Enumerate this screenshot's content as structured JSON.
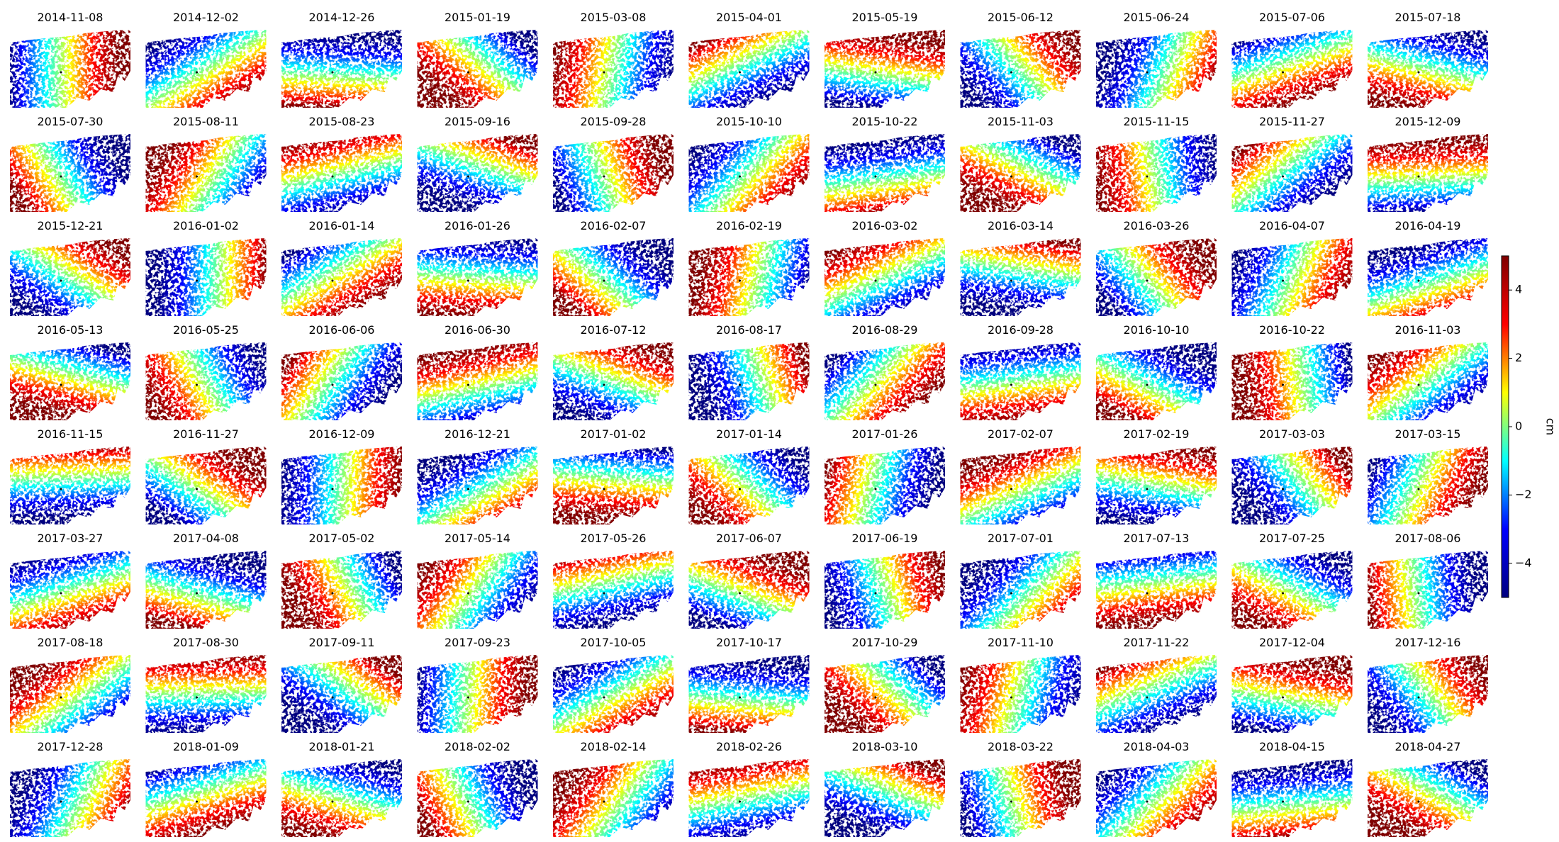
{
  "chart_data": {
    "type": "image-grid",
    "colormap": "jet",
    "titles": [
      "2014-11-08",
      "2014-12-02",
      "2014-12-26",
      "2015-01-19",
      "2015-03-08",
      "2015-04-01",
      "2015-05-19",
      "2015-06-12",
      "2015-06-24",
      "2015-07-06",
      "2015-07-18",
      "2015-07-30",
      "2015-08-11",
      "2015-08-23",
      "2015-09-16",
      "2015-09-28",
      "2015-10-10",
      "2015-10-22",
      "2015-11-03",
      "2015-11-15",
      "2015-11-27",
      "2015-12-09",
      "2015-12-21",
      "2016-01-02",
      "2016-01-14",
      "2016-01-26",
      "2016-02-07",
      "2016-02-19",
      "2016-03-02",
      "2016-03-14",
      "2016-03-26",
      "2016-04-07",
      "2016-04-19",
      "2016-05-13",
      "2016-05-25",
      "2016-06-06",
      "2016-06-30",
      "2016-07-12",
      "2016-08-17",
      "2016-08-29",
      "2016-09-28",
      "2016-10-10",
      "2016-10-22",
      "2016-11-03",
      "2016-11-15",
      "2016-11-27",
      "2016-12-09",
      "2016-12-21",
      "2017-01-02",
      "2017-01-14",
      "2017-01-26",
      "2017-02-07",
      "2017-02-19",
      "2017-03-03",
      "2017-03-15",
      "2017-03-27",
      "2017-04-08",
      "2017-05-02",
      "2017-05-14",
      "2017-05-26",
      "2017-06-07",
      "2017-06-19",
      "2017-07-01",
      "2017-07-13",
      "2017-07-25",
      "2017-08-06",
      "2017-08-18",
      "2017-08-30",
      "2017-09-11",
      "2017-09-23",
      "2017-10-05",
      "2017-10-17",
      "2017-10-29",
      "2017-11-10",
      "2017-11-22",
      "2017-12-04",
      "2017-12-16",
      "2017-12-28",
      "2018-01-09",
      "2018-01-21",
      "2018-02-02",
      "2018-02-14",
      "2018-02-26",
      "2018-03-10",
      "2018-03-22",
      "2018-04-03",
      "2018-04-15",
      "2018-04-27"
    ],
    "colorbar": {
      "label": "cm",
      "lim": [
        -5,
        5
      ],
      "ticks": [
        {
          "value": -4,
          "label": "−4"
        },
        {
          "value": -2,
          "label": "−2"
        },
        0,
        2,
        4
      ]
    }
  }
}
